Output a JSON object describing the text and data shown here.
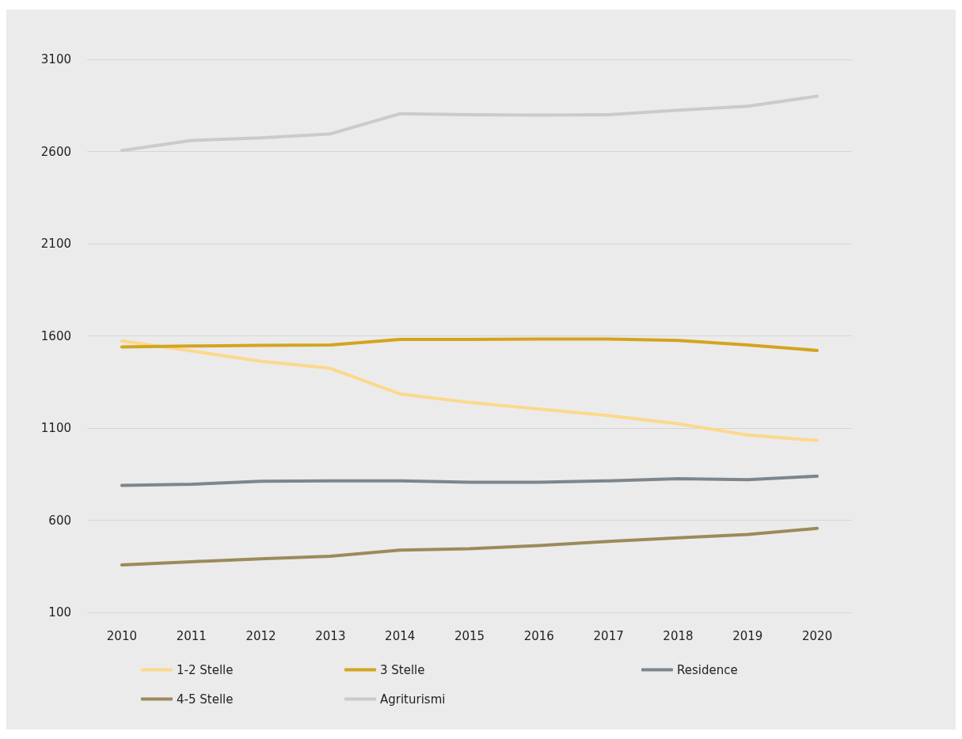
{
  "chart_data": {
    "type": "line",
    "categories": [
      "2010",
      "2011",
      "2012",
      "2013",
      "2014",
      "2015",
      "2016",
      "2017",
      "2018",
      "2019",
      "2020"
    ],
    "ylim": [
      100,
      3100
    ],
    "yticks": [
      100,
      600,
      1100,
      1600,
      2100,
      2600,
      3100
    ],
    "grid": "y",
    "legend": "bottom",
    "line_style": "solid",
    "series": [
      {
        "name": "1-2 Stelle",
        "color": "#fcd98b",
        "values": [
          1573,
          1518,
          1463,
          1424,
          1285,
          1239,
          1203,
          1168,
          1124,
          1062,
          1032
        ]
      },
      {
        "name": "3 Stelle",
        "color": "#d4a41e",
        "values": [
          1540,
          1545,
          1548,
          1551,
          1581,
          1581,
          1583,
          1583,
          1575,
          1551,
          1521
        ]
      },
      {
        "name": "Residence",
        "color": "#7d868c",
        "values": [
          789,
          795,
          811,
          814,
          814,
          806,
          806,
          814,
          825,
          820,
          839
        ]
      },
      {
        "name": "4-5 Stelle",
        "color": "#9c8a5a",
        "values": [
          358,
          375,
          391,
          405,
          438,
          446,
          463,
          485,
          504,
          523,
          556
        ]
      },
      {
        "name": "Agriturismi",
        "color": "#c9ccc8",
        "values": [
          2605,
          2660,
          2674,
          2696,
          2805,
          2800,
          2797,
          2800,
          2824,
          2846,
          2900
        ]
      }
    ]
  }
}
